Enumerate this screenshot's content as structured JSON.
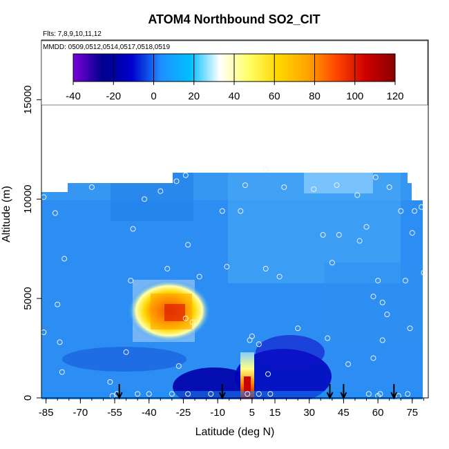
{
  "chart_data": {
    "type": "heatmap",
    "title": "ATOM4 Northbound SO2_CIT",
    "subtitle_flights": "Flts: 7,8,9,10,11,12",
    "subtitle_dates": "MMDD: 0509,0512,0514,0517,0518,0519",
    "xlabel": "Latitude (deg N)",
    "ylabel": "Altitude (m)",
    "xlim": [
      -87,
      82
    ],
    "ylim": [
      0,
      18000
    ],
    "x_ticks": [
      "-85",
      "-70",
      "-55",
      "-40",
      "-25",
      "-10",
      "5",
      "15",
      "30",
      "45",
      "60",
      "75"
    ],
    "y_ticks": [
      "0",
      "5000",
      "10000",
      "15000"
    ],
    "colorbar": {
      "range": [
        -40,
        120
      ],
      "ticks": [
        "-40",
        "-20",
        "0",
        "20",
        "40",
        "60",
        "80",
        "100",
        "120"
      ],
      "colors": [
        "#7a00d9",
        "#00008b",
        "#0000cd",
        "#1e90ff",
        "#00bfff",
        "#ffffff",
        "#ffff66",
        "#ffd700",
        "#ffa500",
        "#ff4500",
        "#cc0000",
        "#8b0000"
      ]
    },
    "background_value": 8,
    "features": [
      {
        "name": "midlevel plume",
        "lat_range": [
          -40,
          -22
        ],
        "alt_range": [
          3000,
          5500
        ],
        "peak": 95
      },
      {
        "name": "equatorial boundary layer maximum",
        "lat_range": [
          3,
          7
        ],
        "alt_range": [
          0,
          1500
        ],
        "peak": 110
      },
      {
        "name": "tropical low values west",
        "lat_range": [
          -20,
          0
        ],
        "alt_range": [
          0,
          1200
        ],
        "value": -18
      },
      {
        "name": "tropical low values east",
        "lat_range": [
          8,
          25
        ],
        "alt_range": [
          0,
          2000
        ],
        "value": -18
      }
    ],
    "profile_arrows_lat": [
      -53,
      -8,
      39,
      45,
      67
    ],
    "observation_points": [
      [
        -86,
        10100
      ],
      [
        -86,
        3300
      ],
      [
        -81,
        9300
      ],
      [
        -80,
        4700
      ],
      [
        -79,
        2800
      ],
      [
        -78,
        1300
      ],
      [
        -77,
        7000
      ],
      [
        -65,
        10600
      ],
      [
        -57,
        800
      ],
      [
        -56,
        100
      ],
      [
        -54,
        200
      ],
      [
        -50,
        2300
      ],
      [
        -48,
        5900
      ],
      [
        -47,
        8500
      ],
      [
        -45,
        200
      ],
      [
        -42,
        10000
      ],
      [
        -40,
        200
      ],
      [
        -35,
        10400
      ],
      [
        -32,
        6500
      ],
      [
        -30,
        200
      ],
      [
        -28,
        10900
      ],
      [
        -27,
        1600
      ],
      [
        -24,
        11200
      ],
      [
        -24,
        4000
      ],
      [
        -23,
        7700
      ],
      [
        -23,
        200
      ],
      [
        -21,
        3800
      ],
      [
        -18,
        6100
      ],
      [
        -13,
        200
      ],
      [
        -8,
        9400
      ],
      [
        -6,
        6600
      ],
      [
        0,
        9400
      ],
      [
        2,
        10700
      ],
      [
        3,
        200
      ],
      [
        4,
        2900
      ],
      [
        5,
        3100
      ],
      [
        8,
        2700
      ],
      [
        8,
        200
      ],
      [
        11,
        11500
      ],
      [
        11,
        6500
      ],
      [
        12,
        1200
      ],
      [
        13,
        200
      ],
      [
        17,
        6100
      ],
      [
        19,
        10600
      ],
      [
        25,
        3500
      ],
      [
        32,
        10500
      ],
      [
        36,
        8200
      ],
      [
        38,
        3000
      ],
      [
        40,
        6800
      ],
      [
        42,
        10700
      ],
      [
        43,
        8200
      ],
      [
        47,
        1700
      ],
      [
        51,
        10200
      ],
      [
        52,
        7900
      ],
      [
        55,
        8600
      ],
      [
        56,
        200
      ],
      [
        58,
        5100
      ],
      [
        58,
        2000
      ],
      [
        59,
        11100
      ],
      [
        60,
        100
      ],
      [
        60,
        5900
      ],
      [
        61,
        200
      ],
      [
        62,
        4800
      ],
      [
        62,
        2900
      ],
      [
        64,
        4200
      ],
      [
        65,
        10600
      ],
      [
        69,
        100
      ],
      [
        70,
        9400
      ],
      [
        72,
        5900
      ],
      [
        73,
        200
      ],
      [
        74,
        3500
      ],
      [
        75,
        8300
      ],
      [
        76,
        9400
      ],
      [
        79,
        9600
      ],
      [
        80,
        6300
      ]
    ]
  }
}
